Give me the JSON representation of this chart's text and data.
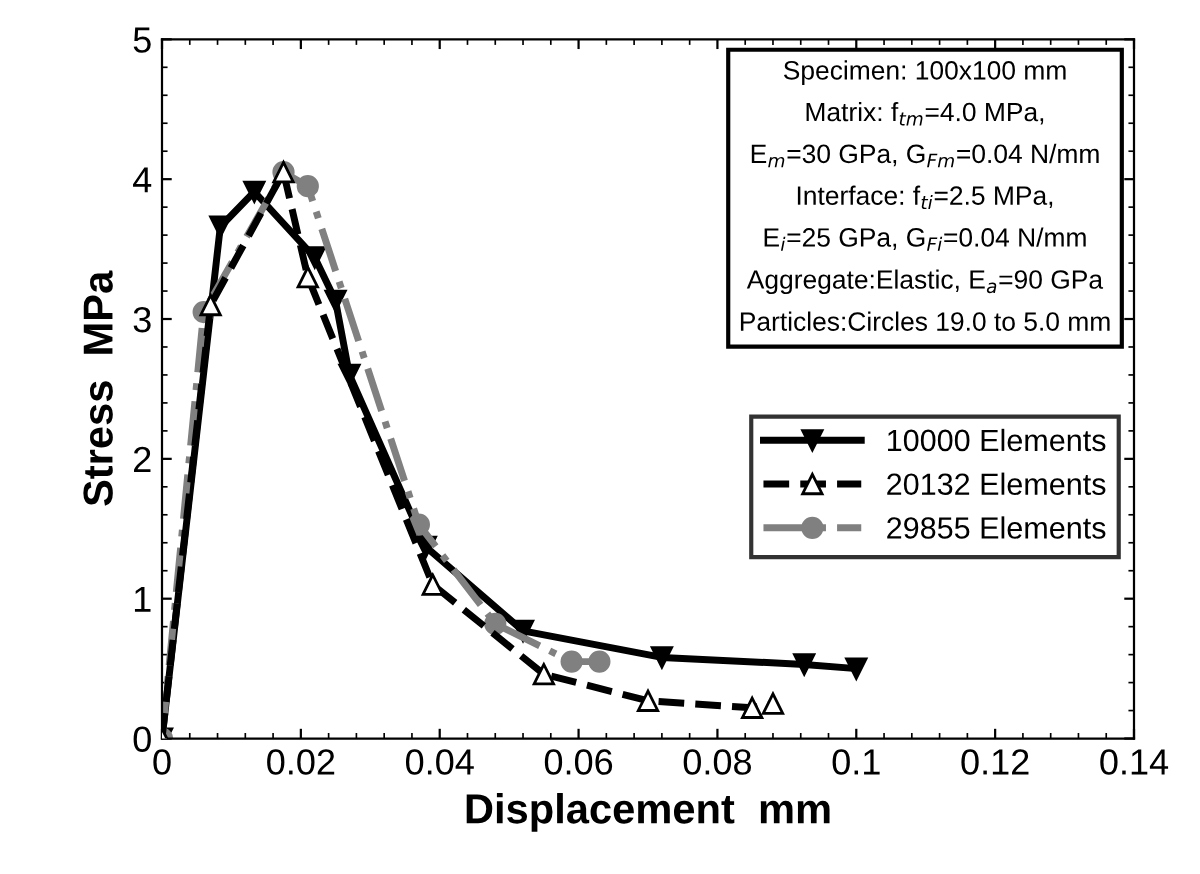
{
  "chart_data": {
    "type": "line",
    "xlabel": "Displacement  mm",
    "ylabel": "Stress  MPa",
    "xlim": [
      0,
      0.14
    ],
    "ylim": [
      0,
      5
    ],
    "xticks": [
      0,
      0.02,
      0.04,
      0.06,
      0.08,
      0.1,
      0.12,
      0.14
    ],
    "yticks": [
      0,
      1,
      2,
      3,
      4,
      5
    ],
    "grid": false,
    "legend": "right",
    "annotations": [
      "Specimen: 100x100 mm",
      "Matrix: f$_{tm}$=4.0 MPa,",
      "E$_{m}$=30 GPa, G$_{Fm}$=0.04 N/mm",
      "Interface: f$_{ti}$=2.5 MPa,",
      "E$_{i}$=25 GPa, G$_{Fi}$=0.04 N/mm",
      "Aggregate:Elastic, E$_{a}$=90 GPa",
      "Particles:Circles 19.0 to 5.0 mm"
    ],
    "series": [
      {
        "name": "10000 Elements",
        "color": "#000000",
        "marker": "triangle",
        "line_style": "solid",
        "x": [
          0,
          0.0084,
          0.0133,
          0.022,
          0.025,
          0.027,
          0.038,
          0.052,
          0.072,
          0.0925,
          0.1
        ],
        "values": [
          0,
          3.66,
          3.91,
          3.44,
          3.13,
          2.6,
          1.37,
          0.77,
          0.58,
          0.53,
          0.5
        ]
      },
      {
        "name": "20132 Elements",
        "color": "#000000",
        "marker": "triangle",
        "line_style": "dashed",
        "x": [
          0,
          0.007,
          0.0175,
          0.021,
          0.039,
          0.055,
          0.07,
          0.085,
          0.088
        ],
        "values": [
          0,
          3.1,
          4.05,
          3.3,
          1.1,
          0.46,
          0.27,
          0.22,
          0.25
        ]
      },
      {
        "name": "29855 Elements",
        "color": "#808080",
        "marker": "circle",
        "line_style": "dashdot",
        "x": [
          0,
          0.006,
          0.0175,
          0.021,
          0.037,
          0.048,
          0.059,
          0.063
        ],
        "values": [
          0,
          3.05,
          4.05,
          3.95,
          1.53,
          0.82,
          0.55,
          0.55
        ]
      }
    ]
  }
}
